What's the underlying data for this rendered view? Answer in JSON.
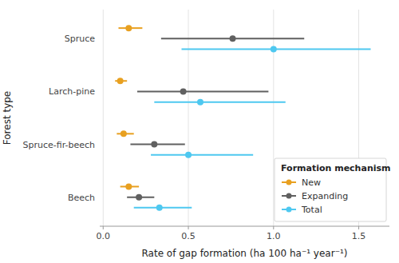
{
  "chart_data": {
    "type": "interval",
    "x_label": "Rate of gap formation (ha 100 ha⁻¹ year⁻¹)",
    "y_label": "Forest type",
    "legend_title": "Formation mechanism",
    "categories": [
      "Spruce",
      "Larch-pine",
      "Spruce-fir-beech",
      "Beech"
    ],
    "series": [
      {
        "name": "New",
        "color": "#E8A020",
        "values": [
          0.15,
          0.1,
          0.12,
          0.15
        ],
        "lo": [
          0.09,
          0.07,
          0.08,
          0.1
        ],
        "hi": [
          0.23,
          0.14,
          0.18,
          0.21
        ]
      },
      {
        "name": "Expanding",
        "color": "#606060",
        "values": [
          0.76,
          0.47,
          0.3,
          0.21
        ],
        "lo": [
          0.34,
          0.2,
          0.16,
          0.14
        ],
        "hi": [
          1.18,
          0.97,
          0.48,
          0.3
        ]
      },
      {
        "name": "Total",
        "color": "#4EC8F0",
        "values": [
          1.0,
          0.57,
          0.5,
          0.33
        ],
        "lo": [
          0.46,
          0.3,
          0.28,
          0.18
        ],
        "hi": [
          1.57,
          1.07,
          0.88,
          0.52
        ]
      }
    ],
    "xlim": [
      -0.02,
      1.68
    ],
    "xticks": [
      {
        "value": 0.0,
        "label": "0.0"
      },
      0.5,
      {
        "value": 1.0,
        "label": "1.0"
      },
      1.5
    ],
    "grid": true,
    "legend": "lower-right"
  }
}
